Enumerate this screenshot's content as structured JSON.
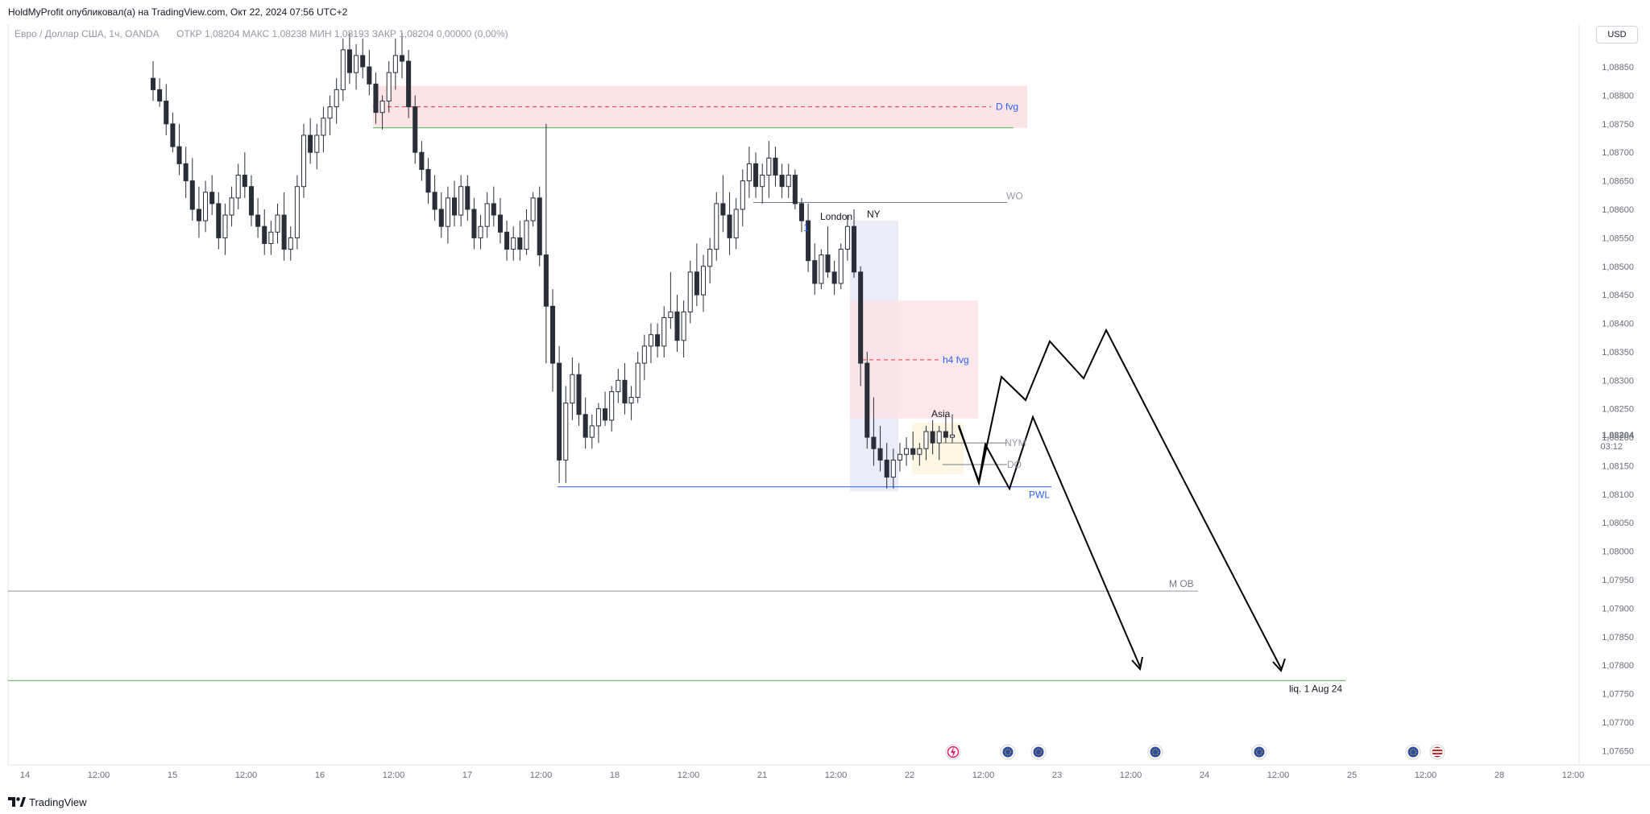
{
  "header": {
    "publisher_line": "HoldMyProfit опубликовал(а) на TradingView.com, Окт 22, 2024 07:56 UTC+2"
  },
  "legend": {
    "symbol_line": "Евро / Доллар США, 1ч, OANDA",
    "ohlc_line": "ОТКР 1,08204  МАКС 1,08238  МИН 1,08193  ЗАКР 1,08204  0,00000 (0,00%)"
  },
  "currency_button": "USD",
  "footer": {
    "brand": "TradingView"
  },
  "colors": {
    "bull_body": "#ffffff",
    "bear_body": "#2a2e39",
    "fvg_fill": "#fce4e6",
    "fvg_line": "#f23645",
    "fvg_label": "#2962ff",
    "session_fill": "#ecebf8",
    "pwl_line": "#2962ff",
    "liq_line": "#4caf50",
    "projection": "#000000"
  },
  "chart_data": {
    "type": "candlestick",
    "symbol": "EURUSD",
    "timeframe": "1h",
    "ylim": [
      1.07625,
      1.08925
    ],
    "price_ticks": [
      "1,08850",
      "1,08800",
      "1,08750",
      "1,08700",
      "1,08650",
      "1,08600",
      "1,08550",
      "1,08500",
      "1,08450",
      "1,08400",
      "1,08350",
      "1,08300",
      "1,08250",
      "1,08200",
      "1,08150",
      "1,08100",
      "1,08050",
      "1,08000",
      "1,07950",
      "1,07900",
      "1,07850",
      "1,07800",
      "1,07750",
      "1,07700",
      "1,07650"
    ],
    "time_ticks": [
      {
        "label": "14",
        "t": 0
      },
      {
        "label": "12:00",
        "t": 12
      },
      {
        "label": "15",
        "t": 24
      },
      {
        "label": "12:00",
        "t": 36
      },
      {
        "label": "16",
        "t": 48
      },
      {
        "label": "12:00",
        "t": 60
      },
      {
        "label": "17",
        "t": 72
      },
      {
        "label": "12:00",
        "t": 84
      },
      {
        "label": "18",
        "t": 96
      },
      {
        "label": "12:00",
        "t": 108
      },
      {
        "label": "21",
        "t": 120
      },
      {
        "label": "12:00",
        "t": 132
      },
      {
        "label": "22",
        "t": 144
      },
      {
        "label": "12:00",
        "t": 156
      },
      {
        "label": "23",
        "t": 168
      },
      {
        "label": "12:00",
        "t": 180
      },
      {
        "label": "24",
        "t": 192
      },
      {
        "label": "12:00",
        "t": 204
      },
      {
        "label": "25",
        "t": 216
      },
      {
        "label": "12:00",
        "t": 228
      },
      {
        "label": "28",
        "t": 240
      },
      {
        "label": "12:00",
        "t": 252
      }
    ],
    "last_price": "1,08204",
    "countdown": "03:12",
    "candles": [
      [
        1.0883,
        1.0886,
        1.0879,
        1.0881
      ],
      [
        1.0881,
        1.0883,
        1.0878,
        1.0879
      ],
      [
        1.0879,
        1.0882,
        1.0873,
        1.0875
      ],
      [
        1.0875,
        1.0877,
        1.087,
        1.0871
      ],
      [
        1.0871,
        1.0875,
        1.0866,
        1.0868
      ],
      [
        1.0868,
        1.0871,
        1.0862,
        1.0865
      ],
      [
        1.0865,
        1.0869,
        1.0858,
        1.086
      ],
      [
        1.086,
        1.0864,
        1.0855,
        1.0858
      ],
      [
        1.0858,
        1.0865,
        1.0856,
        1.0863
      ],
      [
        1.0863,
        1.0866,
        1.0859,
        1.0861
      ],
      [
        1.0861,
        1.0863,
        1.0853,
        1.0855
      ],
      [
        1.0855,
        1.0861,
        1.0852,
        1.0859
      ],
      [
        1.0859,
        1.0864,
        1.0857,
        1.0862
      ],
      [
        1.0862,
        1.0868,
        1.086,
        1.0866
      ],
      [
        1.0866,
        1.087,
        1.0862,
        1.0864
      ],
      [
        1.0864,
        1.0866,
        1.0857,
        1.0859
      ],
      [
        1.0859,
        1.0862,
        1.0855,
        1.0857
      ],
      [
        1.0857,
        1.086,
        1.0852,
        1.0854
      ],
      [
        1.0854,
        1.0858,
        1.0852,
        1.0856
      ],
      [
        1.0856,
        1.0861,
        1.0854,
        1.0859
      ],
      [
        1.0859,
        1.0863,
        1.0851,
        1.0853
      ],
      [
        1.0853,
        1.0857,
        1.0851,
        1.0855
      ],
      [
        1.0855,
        1.0866,
        1.0853,
        1.0864
      ],
      [
        1.0864,
        1.0875,
        1.0862,
        1.0873
      ],
      [
        1.0873,
        1.0876,
        1.0868,
        1.087
      ],
      [
        1.087,
        1.0875,
        1.0867,
        1.0873
      ],
      [
        1.0873,
        1.0878,
        1.087,
        1.0876
      ],
      [
        1.0876,
        1.088,
        1.0873,
        1.0878
      ],
      [
        1.0878,
        1.0883,
        1.0875,
        1.0881
      ],
      [
        1.0881,
        1.089,
        1.0879,
        1.0888
      ],
      [
        1.0888,
        1.0891,
        1.0882,
        1.0884
      ],
      [
        1.0884,
        1.0889,
        1.0881,
        1.0887
      ],
      [
        1.0887,
        1.089,
        1.0883,
        1.0885
      ],
      [
        1.0885,
        1.0888,
        1.088,
        1.0882
      ],
      [
        1.0882,
        1.0884,
        1.0875,
        1.0877
      ],
      [
        1.0877,
        1.088,
        1.0874,
        1.0879
      ],
      [
        1.0879,
        1.0886,
        1.0877,
        1.0884
      ],
      [
        1.0884,
        1.089,
        1.0881,
        1.0887
      ],
      [
        1.0887,
        1.0891,
        1.0883,
        1.0886
      ],
      [
        1.0886,
        1.0888,
        1.0876,
        1.0878
      ],
      [
        1.0878,
        1.088,
        1.0868,
        1.087
      ],
      [
        1.087,
        1.0872,
        1.0865,
        1.0867
      ],
      [
        1.0867,
        1.0869,
        1.0861,
        1.0863
      ],
      [
        1.0863,
        1.0866,
        1.0858,
        1.086
      ],
      [
        1.086,
        1.0863,
        1.0855,
        1.0857
      ],
      [
        1.0857,
        1.0864,
        1.0854,
        1.0862
      ],
      [
        1.0862,
        1.0865,
        1.0857,
        1.0859
      ],
      [
        1.0859,
        1.0866,
        1.0857,
        1.0864
      ],
      [
        1.0864,
        1.0866,
        1.0858,
        1.086
      ],
      [
        1.086,
        1.0862,
        1.0853,
        1.0855
      ],
      [
        1.0855,
        1.0859,
        1.0853,
        1.0857
      ],
      [
        1.0857,
        1.0863,
        1.0855,
        1.0861
      ],
      [
        1.0861,
        1.0864,
        1.0857,
        1.0859
      ],
      [
        1.0859,
        1.0862,
        1.0854,
        1.0856
      ],
      [
        1.0856,
        1.0858,
        1.0851,
        1.0853
      ],
      [
        1.0853,
        1.0857,
        1.0851,
        1.0855
      ],
      [
        1.0855,
        1.0858,
        1.0851,
        1.0853
      ],
      [
        1.0853,
        1.086,
        1.0852,
        1.0858
      ],
      [
        1.0858,
        1.0863,
        1.0857,
        1.0862
      ],
      [
        1.0862,
        1.0864,
        1.085,
        1.0852
      ],
      [
        1.0852,
        1.0875,
        1.0833,
        1.0843
      ],
      [
        1.0843,
        1.0846,
        1.0828,
        1.0833
      ],
      [
        1.0833,
        1.0836,
        1.0812,
        1.0816
      ],
      [
        1.0816,
        1.0829,
        1.0812,
        1.0826
      ],
      [
        1.0826,
        1.0834,
        1.0823,
        1.0831
      ],
      [
        1.0831,
        1.0833,
        1.0822,
        1.0824
      ],
      [
        1.0824,
        1.0827,
        1.0818,
        1.082
      ],
      [
        1.082,
        1.0824,
        1.0818,
        1.0822
      ],
      [
        1.0822,
        1.0826,
        1.0819,
        1.0825
      ],
      [
        1.0825,
        1.0828,
        1.0822,
        1.0823
      ],
      [
        1.0823,
        1.0829,
        1.0821,
        1.0828
      ],
      [
        1.0828,
        1.0832,
        1.0826,
        1.083
      ],
      [
        1.083,
        1.0833,
        1.0824,
        1.0826
      ],
      [
        1.0826,
        1.0829,
        1.0823,
        1.0827
      ],
      [
        1.0827,
        1.0835,
        1.0826,
        1.0833
      ],
      [
        1.0833,
        1.0838,
        1.083,
        1.0836
      ],
      [
        1.0836,
        1.084,
        1.0833,
        1.0838
      ],
      [
        1.0838,
        1.084,
        1.0834,
        1.0836
      ],
      [
        1.0836,
        1.0843,
        1.0834,
        1.0841
      ],
      [
        1.0841,
        1.0849,
        1.0839,
        1.0842
      ],
      [
        1.0842,
        1.0845,
        1.0835,
        1.0837
      ],
      [
        1.0837,
        1.0844,
        1.0834,
        1.0842
      ],
      [
        1.0842,
        1.0851,
        1.084,
        1.0849
      ],
      [
        1.0849,
        1.0854,
        1.0843,
        1.0845
      ],
      [
        1.0845,
        1.0852,
        1.0842,
        1.085
      ],
      [
        1.085,
        1.0855,
        1.0847,
        1.0853
      ],
      [
        1.0853,
        1.0863,
        1.0851,
        1.0861
      ],
      [
        1.0861,
        1.0866,
        1.0856,
        1.0859
      ],
      [
        1.0859,
        1.0863,
        1.0852,
        1.0855
      ],
      [
        1.0855,
        1.0862,
        1.0853,
        1.086
      ],
      [
        1.086,
        1.0867,
        1.0857,
        1.0865
      ],
      [
        1.0865,
        1.0871,
        1.0862,
        1.0868
      ],
      [
        1.0868,
        1.087,
        1.0862,
        1.0864
      ],
      [
        1.0864,
        1.0868,
        1.0861,
        1.0866
      ],
      [
        1.0866,
        1.0872,
        1.0862,
        1.0869
      ],
      [
        1.0869,
        1.0871,
        1.0864,
        1.0866
      ],
      [
        1.0866,
        1.0868,
        1.0862,
        1.0864
      ],
      [
        1.0864,
        1.0868,
        1.0862,
        1.0866
      ],
      [
        1.0866,
        1.0867,
        1.086,
        1.0861
      ],
      [
        1.0861,
        1.0862,
        1.0856,
        1.0858
      ],
      [
        1.0858,
        1.0861,
        1.0849,
        1.0851
      ],
      [
        1.0851,
        1.0854,
        1.0845,
        1.0847
      ],
      [
        1.0847,
        1.0853,
        1.0846,
        1.0852
      ],
      [
        1.0852,
        1.0857,
        1.0848,
        1.0849
      ],
      [
        1.0849,
        1.0851,
        1.0845,
        1.0847
      ],
      [
        1.0847,
        1.0854,
        1.0846,
        1.0853
      ],
      [
        1.0853,
        1.0859,
        1.0851,
        1.0857
      ],
      [
        1.0857,
        1.086,
        1.0848,
        1.0849
      ],
      [
        1.0849,
        1.085,
        1.0829,
        1.0833
      ],
      [
        1.0833,
        1.0835,
        1.0818,
        1.082
      ],
      [
        1.082,
        1.0827,
        1.0815,
        1.0818
      ],
      [
        1.0818,
        1.0822,
        1.0814,
        1.0816
      ],
      [
        1.0816,
        1.0819,
        1.0811,
        1.0813
      ],
      [
        1.0813,
        1.0818,
        1.0811,
        1.0816
      ],
      [
        1.0816,
        1.0819,
        1.0814,
        1.0817
      ],
      [
        1.0817,
        1.082,
        1.0815,
        1.0818
      ],
      [
        1.0818,
        1.0821,
        1.0816,
        1.0817
      ],
      [
        1.0817,
        1.0819,
        1.0815,
        1.0818
      ],
      [
        1.0818,
        1.0822,
        1.0816,
        1.0821
      ],
      [
        1.0821,
        1.0823,
        1.0817,
        1.0819
      ],
      [
        1.0819,
        1.0822,
        1.0816,
        1.0821
      ],
      [
        1.0821,
        1.0824,
        1.0819,
        1.082
      ],
      [
        1.082,
        1.0824,
        1.0819,
        1.08204
      ]
    ],
    "levels": [
      {
        "name": "D fvg",
        "top": 1.08817,
        "bottom": 1.08743,
        "mid": 1.0878
      },
      {
        "name": "h4 fvg",
        "top": 1.0844,
        "bottom": 1.08233,
        "mid": 1.08336
      },
      {
        "name": "WO",
        "price": 1.08612
      },
      {
        "name": "NYM",
        "price": 1.0819
      },
      {
        "name": "DO",
        "price": 1.08152
      },
      {
        "name": "PWL",
        "price": 1.08113
      },
      {
        "name": "M OB",
        "price": 1.0793
      },
      {
        "name": "liq. 1 Aug 24",
        "price": 1.07773
      }
    ],
    "sessions": [
      "London",
      "NY",
      "Asia"
    ]
  },
  "labels": {
    "d_fvg": "D fvg",
    "h4_fvg": "h4 fvg",
    "wo": "WO",
    "nym": "NYM",
    "do": "DO",
    "pwl": "PWL",
    "m_ob": "M OB",
    "liq": "liq. 1 Aug 24",
    "london": "London",
    "ny": "NY",
    "asia": "Asia",
    "marker_one": "1"
  },
  "events": [
    {
      "icon": "lightning-icon",
      "color": "#e91e63"
    },
    {
      "icon": "eu-flag-icon",
      "color": "#2e4ba0"
    },
    {
      "icon": "eu-flag-icon",
      "color": "#2e4ba0"
    },
    {
      "icon": "eu-flag-icon",
      "color": "#2e4ba0"
    },
    {
      "icon": "eu-flag-icon",
      "color": "#2e4ba0"
    },
    {
      "icon": "eu-flag-icon",
      "color": "#2e4ba0"
    },
    {
      "icon": "us-flag-icon",
      "color": "#c62828"
    }
  ]
}
